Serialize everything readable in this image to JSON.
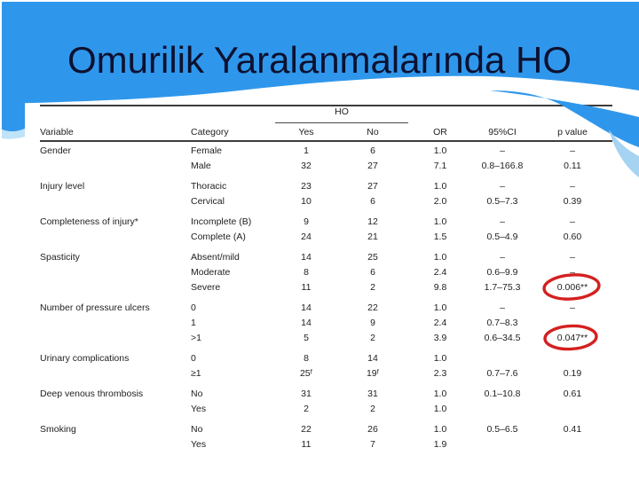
{
  "slide": {
    "title": "Omurilik Yaralanmalarında HO",
    "colors": {
      "header_blue": "#2f97eb",
      "light_blue_accent": "#a6d3f2",
      "left_step_blue": "#bfe3f8",
      "title_color": "#0d1130",
      "rule_color": "#3c3c3c",
      "highlight_red": "#d42020"
    }
  },
  "table": {
    "spanner_label": "HO",
    "columns": [
      "Variable",
      "Category",
      "Yes",
      "No",
      "OR",
      "95%CI",
      "p value"
    ],
    "groups": [
      {
        "variable": "Gender",
        "rows": [
          {
            "category": "Female",
            "yes": "1",
            "no": "6",
            "or": "1.0",
            "ci": "–",
            "p": "–"
          },
          {
            "category": "Male",
            "yes": "32",
            "no": "27",
            "or": "7.1",
            "ci": "0.8–166.8",
            "p": "0.11"
          }
        ]
      },
      {
        "variable": "Injury level",
        "rows": [
          {
            "category": "Thoracic",
            "yes": "23",
            "no": "27",
            "or": "1.0",
            "ci": "–",
            "p": "–"
          },
          {
            "category": "Cervical",
            "yes": "10",
            "no": "6",
            "or": "2.0",
            "ci": "0.5–7.3",
            "p": "0.39"
          }
        ]
      },
      {
        "variable": "Completeness of injury*",
        "rows": [
          {
            "category": "Incomplete (B)",
            "yes": "9",
            "no": "12",
            "or": "1.0",
            "ci": "–",
            "p": "–"
          },
          {
            "category": "Complete (A)",
            "yes": "24",
            "no": "21",
            "or": "1.5",
            "ci": "0.5–4.9",
            "p": "0.60"
          }
        ]
      },
      {
        "variable": "Spasticity",
        "rows": [
          {
            "category": "Absent/mild",
            "yes": "14",
            "no": "25",
            "or": "1.0",
            "ci": "–",
            "p": "–"
          },
          {
            "category": "Moderate",
            "yes": "8",
            "no": "6",
            "or": "2.4",
            "ci": "0.6–9.9",
            "p": "–"
          },
          {
            "category": "Severe",
            "yes": "11",
            "no": "2",
            "or": "9.8",
            "ci": "1.7–75.3",
            "p": "0.006**",
            "circled": true
          }
        ]
      },
      {
        "variable": "Number of pressure ulcers",
        "rows": [
          {
            "category": "0",
            "yes": "14",
            "no": "22",
            "or": "1.0",
            "ci": "–",
            "p": "–"
          },
          {
            "category": "1",
            "yes": "14",
            "no": "9",
            "or": "2.4",
            "ci": "0.7–8.3",
            "p": ""
          },
          {
            "category": ">1",
            "yes": "5",
            "no": "2",
            "or": "3.9",
            "ci": "0.6–34.5",
            "p": "0.047**",
            "circled": true
          }
        ]
      },
      {
        "variable": "Urinary complications",
        "rows": [
          {
            "category": "0",
            "yes": "8",
            "no": "14",
            "or": "1.0",
            "ci": "",
            "p": ""
          },
          {
            "category": "≥1",
            "yes": "25ᶠ",
            "no": "19ᶠ",
            "or": "2.3",
            "ci": "0.7–7.6",
            "p": "0.19"
          }
        ]
      },
      {
        "variable": "Deep venous thrombosis",
        "rows": [
          {
            "category": "No",
            "yes": "31",
            "no": "31",
            "or": "1.0",
            "ci": "0.1–10.8",
            "p": "0.61"
          },
          {
            "category": "Yes",
            "yes": "2",
            "no": "2",
            "or": "1.0",
            "ci": "",
            "p": ""
          }
        ]
      },
      {
        "variable": "Smoking",
        "rows": [
          {
            "category": "No",
            "yes": "22",
            "no": "26",
            "or": "1.0",
            "ci": "0.5–6.5",
            "p": "0.41"
          },
          {
            "category": "Yes",
            "yes": "11",
            "no": "7",
            "or": "1.9",
            "ci": "",
            "p": ""
          }
        ]
      }
    ],
    "annotations": [
      {
        "type": "red-ellipse-highlight",
        "around": "0.006**"
      },
      {
        "type": "red-ellipse-highlight",
        "around": "0.047**"
      }
    ]
  }
}
